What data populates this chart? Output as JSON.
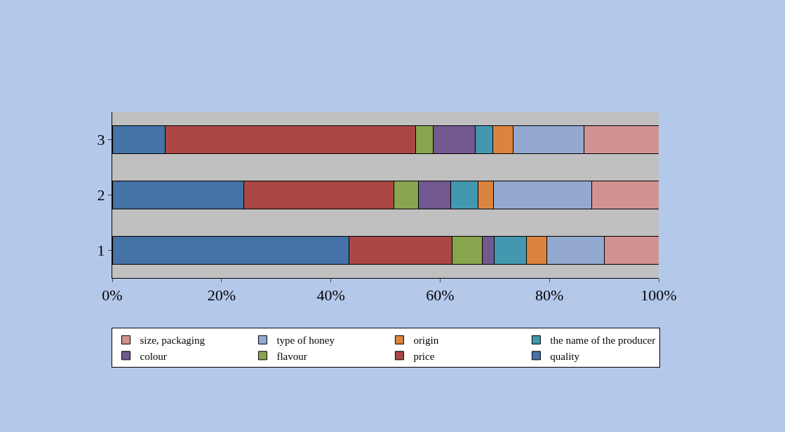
{
  "chart_data": {
    "type": "bar",
    "orientation": "horizontal",
    "stacked": true,
    "categories": [
      "3",
      "2",
      "1"
    ],
    "series": [
      {
        "name": "quality",
        "color": "#4572a7",
        "values": [
          9.7,
          24.1,
          43.3
        ]
      },
      {
        "name": "price",
        "color": "#aa4643",
        "values": [
          45.8,
          27.5,
          18.9
        ]
      },
      {
        "name": "flavour",
        "color": "#89a54e",
        "values": [
          3.2,
          4.4,
          5.5
        ]
      },
      {
        "name": "colour",
        "color": "#71588f",
        "values": [
          7.7,
          5.9,
          2.2
        ]
      },
      {
        "name": "the name of the producer",
        "color": "#4198af",
        "values": [
          3.2,
          5.1,
          5.9
        ]
      },
      {
        "name": "origin",
        "color": "#db843d",
        "values": [
          3.8,
          2.8,
          3.7
        ]
      },
      {
        "name": "type of honey",
        "color": "#93a9cf",
        "values": [
          12.9,
          18.0,
          10.5
        ]
      },
      {
        "name": "size, packaging",
        "color": "#d19392",
        "values": [
          13.7,
          12.2,
          10.0
        ]
      }
    ],
    "xlim": [
      0,
      100
    ],
    "xticks": [
      {
        "value": 0,
        "label": "0%"
      },
      {
        "value": 20,
        "label": "20%"
      },
      {
        "value": 40,
        "label": "40%"
      },
      {
        "value": 60,
        "label": "60%"
      },
      {
        "value": 80,
        "label": "80%"
      },
      {
        "value": 100,
        "label": "100%"
      }
    ],
    "legend": "bottom"
  }
}
